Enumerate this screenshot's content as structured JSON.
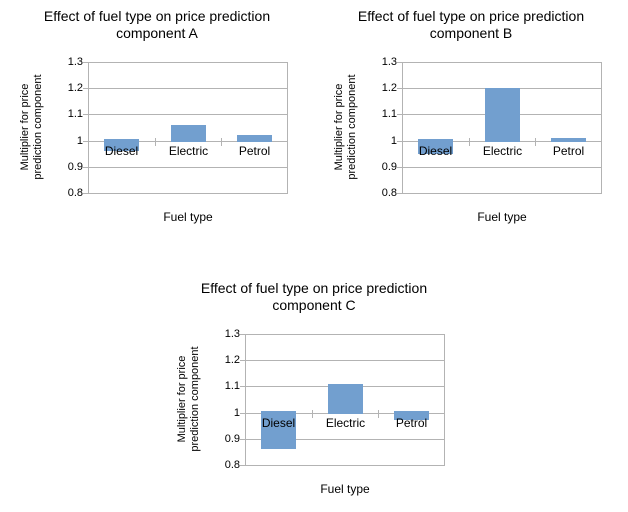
{
  "page": {
    "background": "#ffffff"
  },
  "chart_data": [
    {
      "type": "bar",
      "title": "Effect of fuel type on price prediction component A",
      "title_line1": "Effect of fuel type on price prediction",
      "title_line2": "component A",
      "xlabel": "Fuel type",
      "ylabel": "Multiplier for price prediction component",
      "ylabel_line1": "Multiplier for price",
      "ylabel_line2": "prediction component",
      "categories": [
        "Diesel",
        "Electric",
        "Petrol"
      ],
      "values": [
        0.96,
        1.06,
        1.02
      ],
      "baseline": 1.0,
      "ylim": [
        0.8,
        1.3
      ],
      "ytick_step": 0.1,
      "yticks": [
        "1.3",
        "1.2",
        "1.1",
        "1",
        "0.9",
        "0.8"
      ],
      "grid": true,
      "legend": "none",
      "bar_color": "#729FCF",
      "line_color": "#b3b3b3",
      "text_color": "#000000"
    },
    {
      "type": "bar",
      "title": "Effect of fuel type on price prediction component B",
      "title_line1": "Effect of fuel type on price prediction",
      "title_line2": "component B",
      "xlabel": "Fuel type",
      "ylabel": "Multiplier for price prediction component",
      "ylabel_line1": "Multiplier for price",
      "ylabel_line2": "prediction component",
      "categories": [
        "Diesel",
        "Electric",
        "Petrol"
      ],
      "values": [
        0.95,
        1.2,
        1.01
      ],
      "baseline": 1.0,
      "ylim": [
        0.8,
        1.3
      ],
      "ytick_step": 0.1,
      "yticks": [
        "1.3",
        "1.2",
        "1.1",
        "1",
        "0.9",
        "0.8"
      ],
      "grid": true,
      "legend": "none",
      "bar_color": "#729FCF",
      "line_color": "#b3b3b3",
      "text_color": "#000000"
    },
    {
      "type": "bar",
      "title": "Effect of fuel type on price prediction component C",
      "title_line1": "Effect of fuel type on price prediction",
      "title_line2": "component C",
      "xlabel": "Fuel type",
      "ylabel": "Multiplier for price prediction component",
      "ylabel_line1": "Multiplier for price",
      "ylabel_line2": "prediction component",
      "categories": [
        "Diesel",
        "Electric",
        "Petrol"
      ],
      "values": [
        0.86,
        1.11,
        0.97
      ],
      "baseline": 1.0,
      "ylim": [
        0.8,
        1.3
      ],
      "ytick_step": 0.1,
      "yticks": [
        "1.3",
        "1.2",
        "1.1",
        "1",
        "0.9",
        "0.8"
      ],
      "grid": true,
      "legend": "none",
      "bar_color": "#729FCF",
      "line_color": "#b3b3b3",
      "text_color": "#000000"
    }
  ]
}
